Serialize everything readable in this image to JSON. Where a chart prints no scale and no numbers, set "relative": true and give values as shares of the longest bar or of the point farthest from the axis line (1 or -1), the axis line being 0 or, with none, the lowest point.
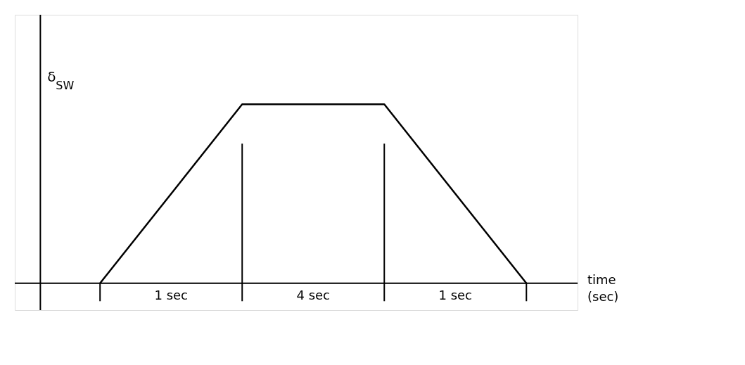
{
  "chart_data": {
    "type": "line",
    "relative": true,
    "xlabel": "time (sec)",
    "ylabel": "δ$_{SW}$",
    "categories": [
      null,
      null,
      null,
      null
    ],
    "series": [
      {
        "color": "#000000",
        "values": [
          0,
          1,
          1,
          0
        ]
      }
    ],
    "annotations": [
      "1 sec",
      "4 sec",
      "1 sec"
    ],
    "grid": false,
    "marker": "none",
    "line_style": "solid"
  }
}
